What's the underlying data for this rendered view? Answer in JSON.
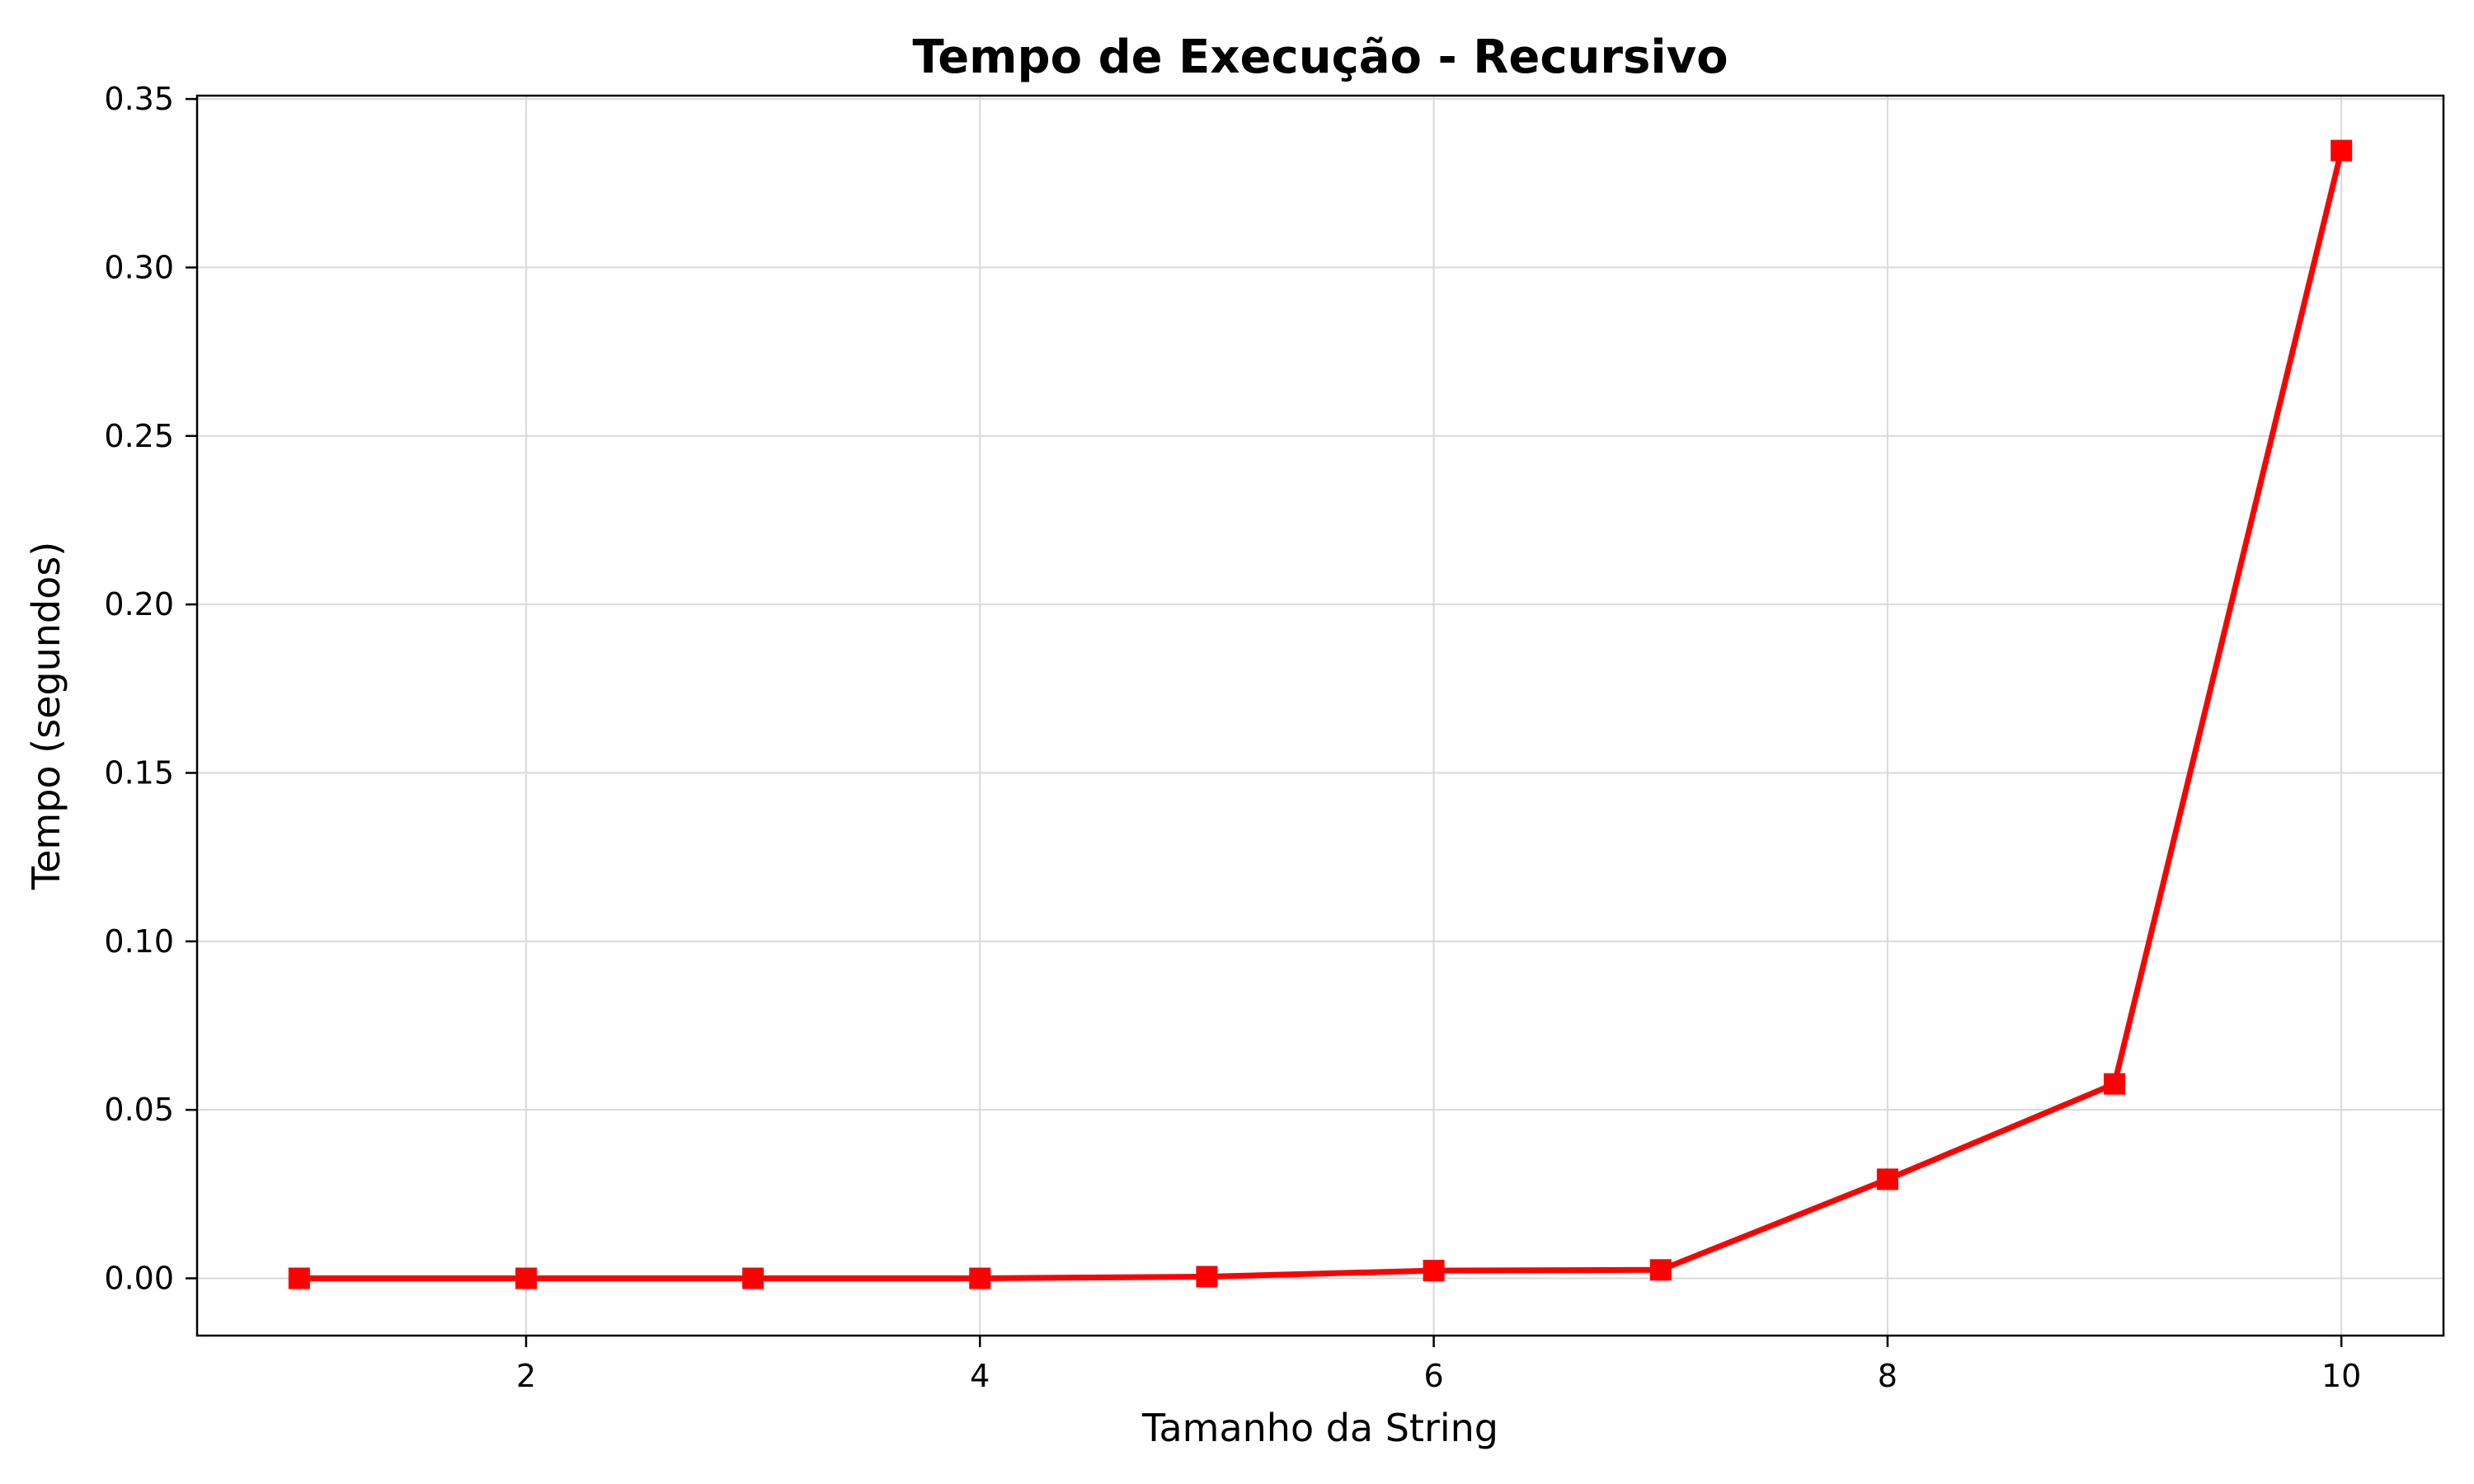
{
  "chart_data": {
    "type": "line",
    "title": "Tempo de Execução - Recursivo",
    "xlabel": "Tamanho da String",
    "ylabel": "Tempo (segundos)",
    "xlim": [
      0.55,
      10.45
    ],
    "ylim": [
      -0.017,
      0.351
    ],
    "xticks": [
      2,
      4,
      6,
      8,
      10
    ],
    "xtick_labels": [
      "2",
      "4",
      "6",
      "8",
      "10"
    ],
    "yticks": [
      0.0,
      0.05,
      0.1,
      0.15,
      0.2,
      0.25,
      0.3,
      0.35
    ],
    "ytick_labels": [
      "0.00",
      "0.05",
      "0.10",
      "0.15",
      "0.20",
      "0.25",
      "0.30",
      "0.35"
    ],
    "grid": true,
    "series": [
      {
        "color": "#ff0000",
        "marker": "square",
        "x": [
          1,
          2,
          3,
          4,
          5,
          6,
          7,
          8,
          9,
          10
        ],
        "y": [
          0.0,
          0.0,
          0.0,
          0.0,
          0.0005,
          0.0023,
          0.0025,
          0.0294,
          0.0577,
          0.3347
        ]
      }
    ]
  }
}
